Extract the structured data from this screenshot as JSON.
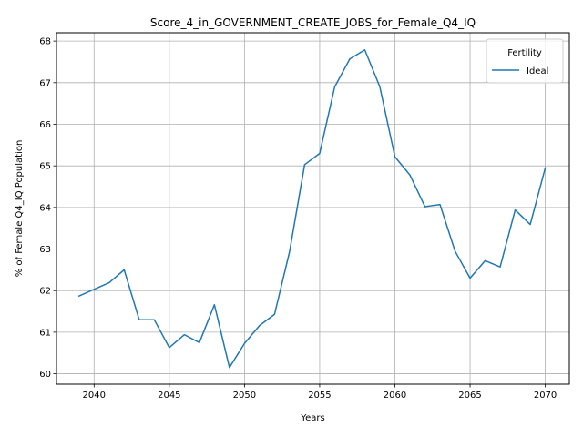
{
  "chart_data": {
    "type": "line",
    "title": "Score_4_in_GOVERNMENT_CREATE_JOBS_for_Female_Q4_IQ",
    "xlabel": "Years",
    "ylabel": "% of Female Q4_IQ Population",
    "xlim": [
      2037.5,
      2071.6
    ],
    "ylim": [
      59.75,
      68.2
    ],
    "xticks": [
      2040,
      2045,
      2050,
      2055,
      2060,
      2065,
      2070
    ],
    "yticks": [
      60,
      61,
      62,
      63,
      64,
      65,
      66,
      67,
      68
    ],
    "grid": true,
    "legend": {
      "title": "Fertility",
      "placement": "top-right"
    },
    "colors": {
      "series": "#1f77b4",
      "grid": "#b0b0b0"
    },
    "series": [
      {
        "name": "Ideal",
        "x": [
          2039,
          2040,
          2041,
          2042,
          2043,
          2044,
          2045,
          2046,
          2047,
          2048,
          2049,
          2050,
          2051,
          2052,
          2053,
          2054,
          2055,
          2056,
          2057,
          2058,
          2059,
          2060,
          2061,
          2062,
          2063,
          2064,
          2065,
          2066,
          2067,
          2068,
          2069,
          2070
        ],
        "values": [
          61.87,
          62.03,
          62.19,
          62.5,
          61.3,
          61.3,
          60.63,
          60.94,
          60.75,
          61.66,
          60.15,
          60.73,
          61.16,
          61.43,
          62.94,
          65.03,
          65.3,
          66.9,
          67.57,
          67.79,
          66.9,
          65.22,
          64.78,
          64.02,
          64.07,
          62.95,
          62.3,
          62.72,
          62.57,
          63.94,
          63.59,
          64.95
        ]
      }
    ]
  }
}
